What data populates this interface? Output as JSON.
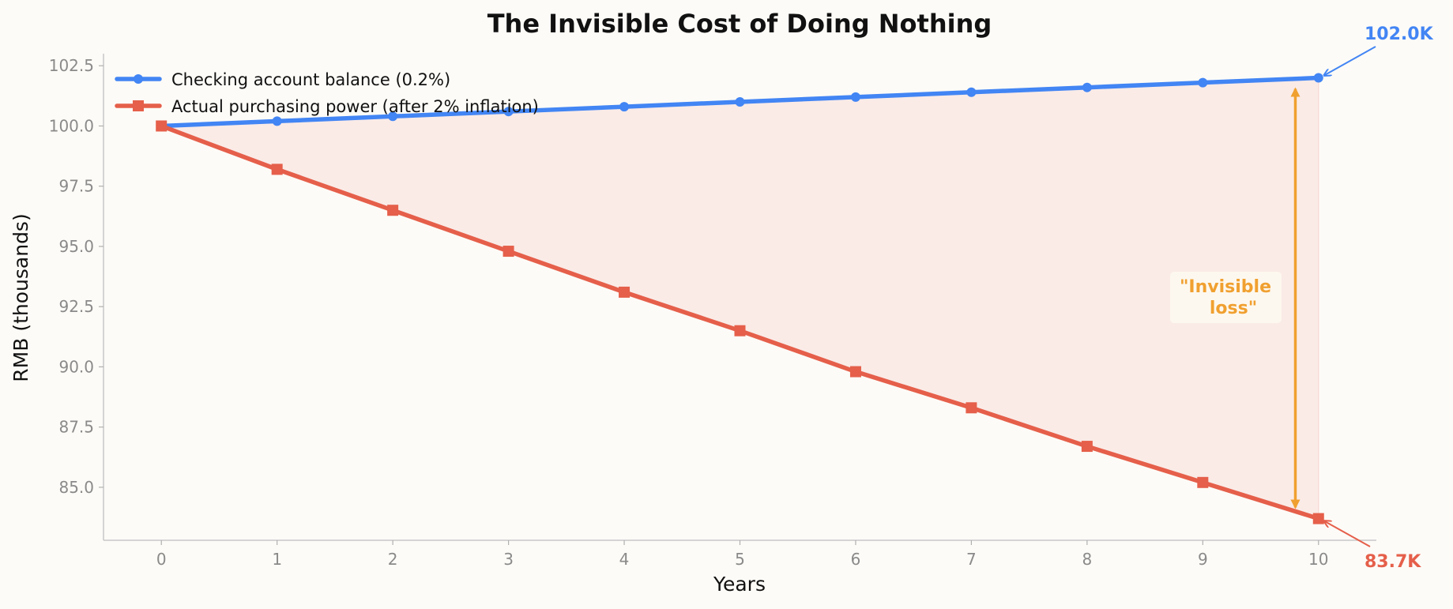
{
  "chart_data": {
    "type": "line",
    "title": "The Invisible Cost of Doing Nothing",
    "xlabel": "Years",
    "ylabel": "RMB (thousands)",
    "x": [
      0,
      1,
      2,
      3,
      4,
      5,
      6,
      7,
      8,
      9,
      10
    ],
    "xlim": [
      -0.5,
      10.5
    ],
    "ylim": [
      82.8,
      103.0
    ],
    "x_ticks": [
      "0",
      "1",
      "2",
      "3",
      "4",
      "5",
      "6",
      "7",
      "8",
      "9",
      "10"
    ],
    "y_ticks": [
      "85.0",
      "87.5",
      "90.0",
      "92.5",
      "95.0",
      "97.5",
      "100.0",
      "102.5"
    ],
    "grid": false,
    "legend_position": "top-left",
    "series": [
      {
        "name": "Checking account balance (0.2%)",
        "color": "#4285f4",
        "marker": "circle",
        "values": [
          100.0,
          100.2,
          100.4,
          100.6,
          100.8,
          101.0,
          101.2,
          101.4,
          101.6,
          101.8,
          102.0
        ]
      },
      {
        "name": "Actual purchasing power (after 2% inflation)",
        "color": "#e55f4a",
        "marker": "square",
        "values": [
          100.0,
          98.2,
          96.5,
          94.8,
          93.1,
          91.5,
          89.8,
          88.3,
          86.7,
          85.2,
          83.7
        ]
      }
    ],
    "shaded_area": {
      "between": "series",
      "color": "#f5c8c3"
    },
    "annotations": {
      "end_blue": {
        "text": "102.0K",
        "color": "#4285f4"
      },
      "end_red": {
        "text": "83.7K",
        "color": "#e55f4a"
      },
      "gap": {
        "text_line1": "\"Invisible",
        "text_line2": "loss\"",
        "color": "#f0a030",
        "x": 9.8
      }
    }
  }
}
